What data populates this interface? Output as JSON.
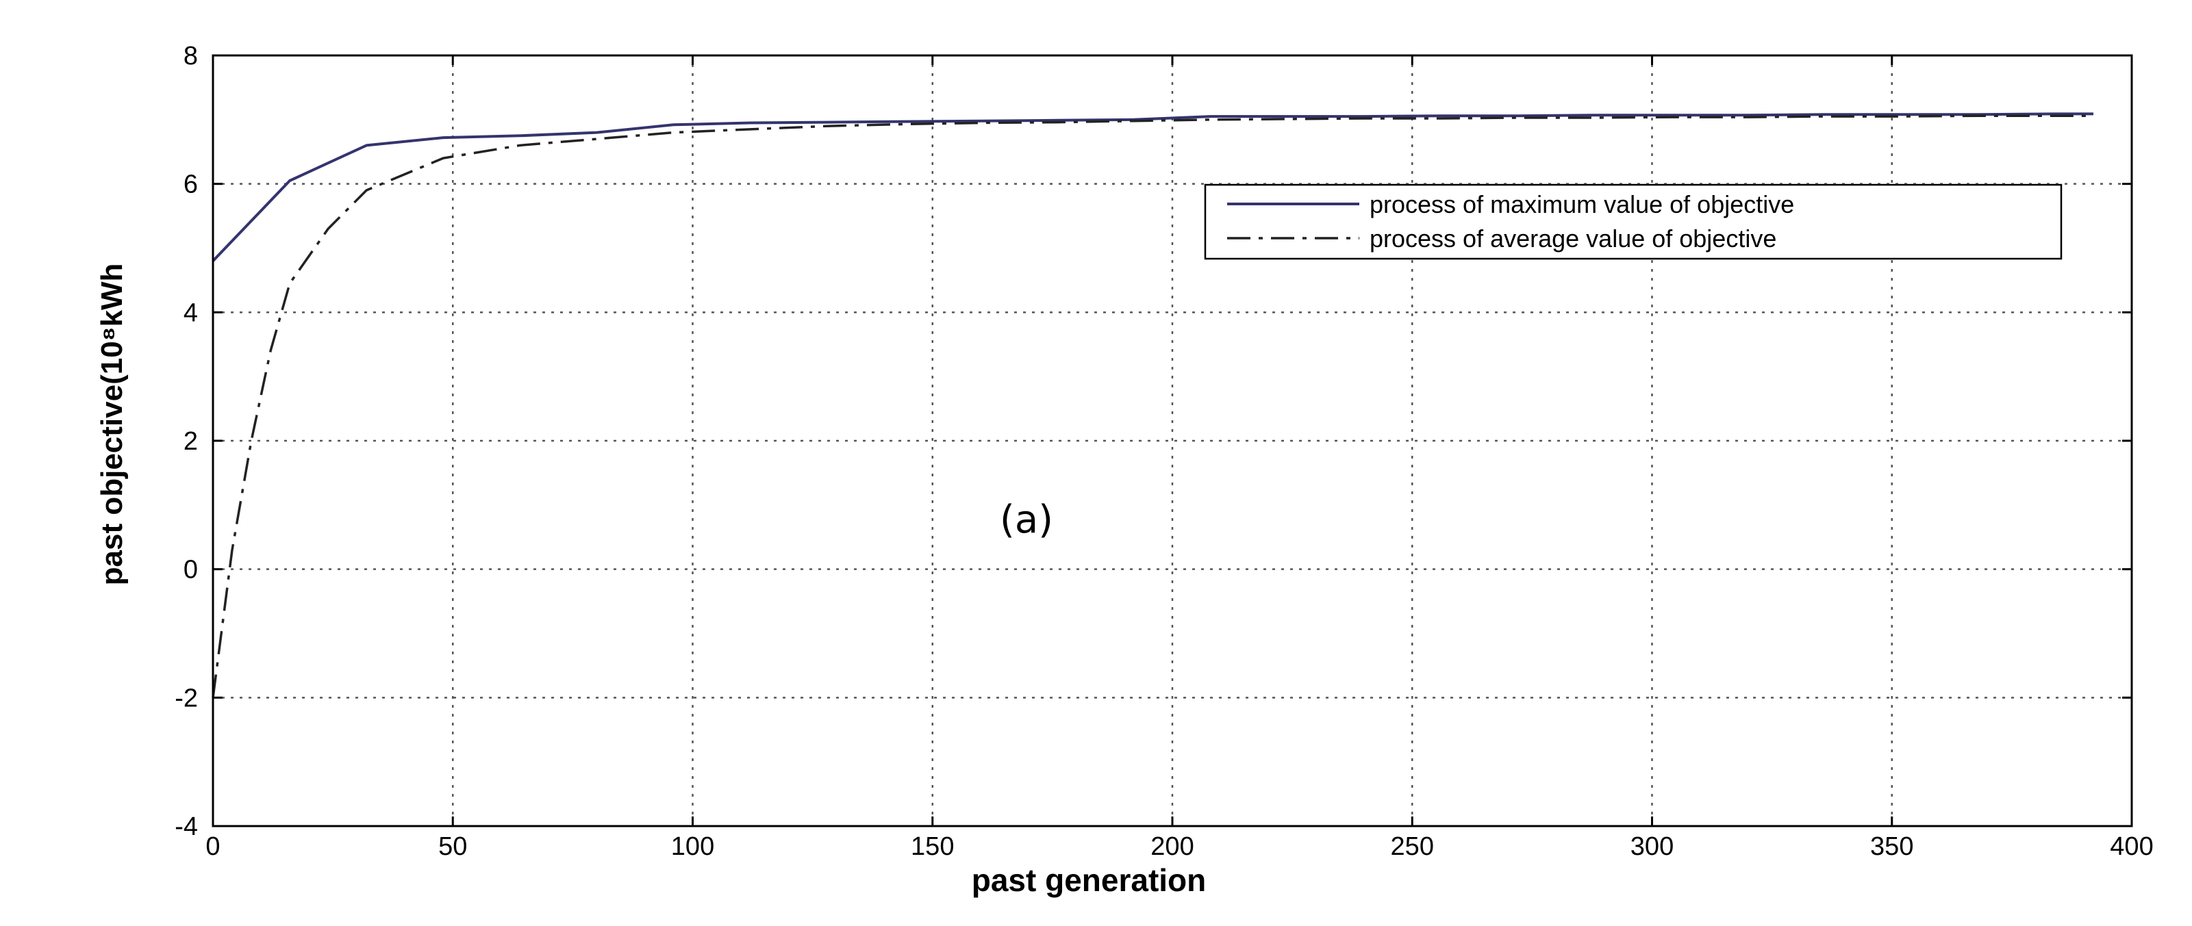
{
  "chart_data": {
    "type": "line",
    "title": "",
    "xlabel": "past generation",
    "ylabel": "past objective(10⁸kWh",
    "xlim": [
      0,
      400
    ],
    "ylim": [
      -4,
      8
    ],
    "xticks": [
      0,
      50,
      100,
      150,
      200,
      250,
      300,
      350,
      400
    ],
    "yticks": [
      -4,
      -2,
      0,
      2,
      4,
      6,
      8
    ],
    "grid": true,
    "legend_position": "top-right",
    "annotation": "(a)",
    "series": [
      {
        "name": "process of maximum value of objective",
        "style": "solid",
        "color": "#34346e",
        "x": [
          0,
          16,
          32,
          48,
          64,
          80,
          96,
          112,
          128,
          144,
          160,
          176,
          192,
          208,
          224,
          240,
          256,
          272,
          288,
          304,
          320,
          336,
          352,
          368,
          384,
          392
        ],
        "y": [
          4.8,
          6.05,
          6.6,
          6.72,
          6.75,
          6.8,
          6.92,
          6.95,
          6.96,
          6.97,
          6.98,
          6.99,
          7.0,
          7.05,
          7.05,
          7.05,
          7.06,
          7.06,
          7.07,
          7.07,
          7.07,
          7.08,
          7.08,
          7.08,
          7.09,
          7.09
        ]
      },
      {
        "name": "process of average value of objective",
        "style": "dashdot",
        "color": "#222222",
        "x": [
          0,
          4,
          8,
          12,
          16,
          24,
          32,
          48,
          64,
          80,
          96,
          112,
          128,
          144,
          160,
          176,
          192,
          208,
          224,
          240,
          256,
          272,
          288,
          304,
          320,
          336,
          352,
          368,
          384,
          392
        ],
        "y": [
          -2.0,
          0.3,
          2.0,
          3.4,
          4.45,
          5.3,
          5.9,
          6.4,
          6.6,
          6.7,
          6.8,
          6.85,
          6.9,
          6.93,
          6.95,
          6.96,
          6.98,
          7.0,
          7.01,
          7.02,
          7.02,
          7.03,
          7.03,
          7.04,
          7.04,
          7.05,
          7.05,
          7.06,
          7.06,
          7.06
        ]
      }
    ]
  }
}
